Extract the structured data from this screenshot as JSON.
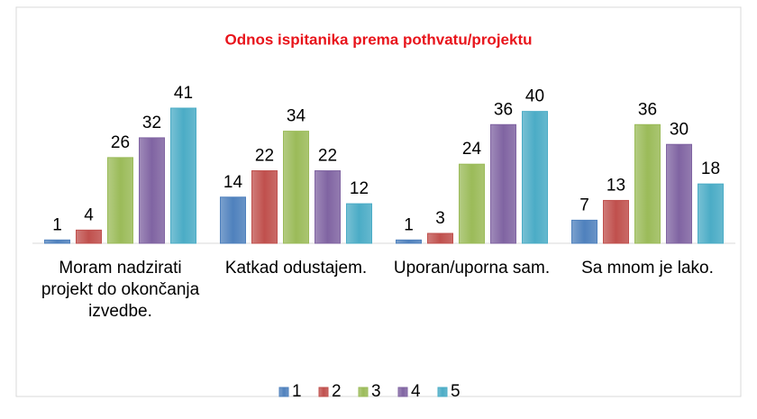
{
  "chart_data": {
    "type": "bar",
    "title": "Odnos ispitanika prema pothvatu/projektu",
    "categories": [
      "Moram nadzirati projekt do okončanja izvedbe.",
      "Katkad odustajem.",
      "Uporan/uporna sam.",
      "Sa mnom je lako."
    ],
    "series": [
      {
        "name": "1",
        "color": "#4f81bd",
        "values": [
          1,
          14,
          1,
          7
        ]
      },
      {
        "name": "2",
        "color": "#c0504d",
        "values": [
          4,
          22,
          3,
          13
        ]
      },
      {
        "name": "3",
        "color": "#9bbb59",
        "values": [
          26,
          34,
          24,
          36
        ]
      },
      {
        "name": "4",
        "color": "#8064a2",
        "values": [
          32,
          22,
          36,
          30
        ]
      },
      {
        "name": "5",
        "color": "#4bacc6",
        "values": [
          41,
          12,
          40,
          18
        ]
      }
    ],
    "legend": "bottom"
  }
}
